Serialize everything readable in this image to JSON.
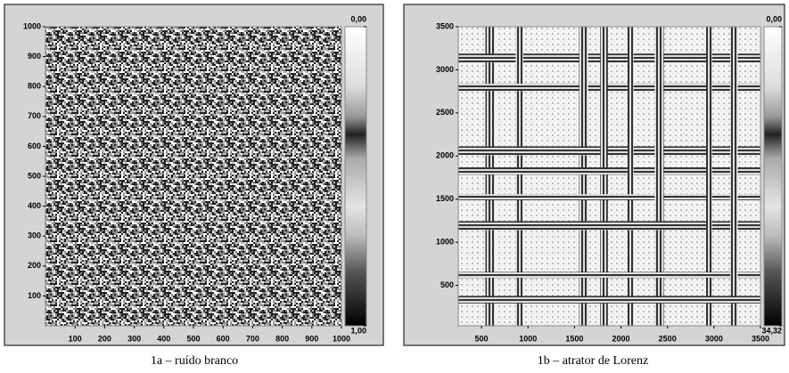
{
  "chart_data": [
    {
      "type": "heatmap",
      "caption": "1a – ruído branco",
      "xlim": [
        0,
        1000
      ],
      "ylim": [
        0,
        1000
      ],
      "xticks": [
        100,
        200,
        300,
        400,
        500,
        600,
        700,
        800,
        900,
        1000
      ],
      "yticks": [
        100,
        200,
        300,
        400,
        500,
        600,
        700,
        800,
        900,
        1000
      ],
      "colorbar_lim": [
        0,
        1
      ],
      "colorbar_ticks": [
        {
          "value": 0,
          "label": "0,00"
        },
        {
          "value": 1,
          "label": "1,00"
        }
      ]
    },
    {
      "type": "heatmap",
      "caption": "1b – atrator de Lorenz",
      "xlim": [
        250,
        3500
      ],
      "ylim": [
        30,
        3500
      ],
      "xticks": [
        500,
        1000,
        1500,
        2000,
        2500,
        3000,
        3500
      ],
      "yticks": [
        500,
        1000,
        1500,
        2000,
        2500,
        3000,
        3500
      ],
      "colorbar_lim": [
        0,
        34.32
      ],
      "colorbar_ticks": [
        {
          "value": 0,
          "label": "0,00"
        },
        {
          "value": 34.32,
          "label": "34,32"
        }
      ]
    }
  ]
}
